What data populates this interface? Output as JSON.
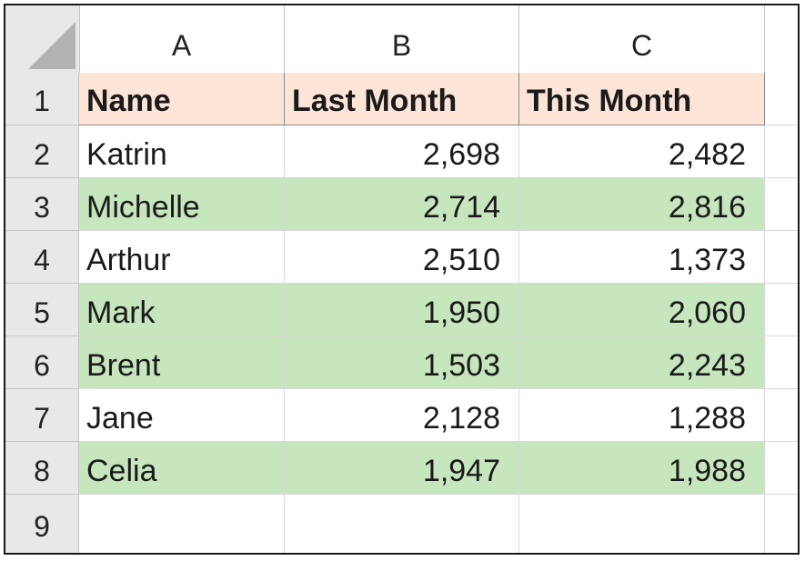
{
  "sheet": {
    "columns": [
      "A",
      "B",
      "C"
    ],
    "row_numbers": [
      "1",
      "2",
      "3",
      "4",
      "5",
      "6",
      "7",
      "8",
      "9"
    ],
    "header": {
      "name": "Name",
      "last_month": "Last Month",
      "this_month": "This Month"
    },
    "rows": [
      {
        "name": "Katrin",
        "last_month": "2,698",
        "this_month": "2,482",
        "banded": false
      },
      {
        "name": "Michelle",
        "last_month": "2,714",
        "this_month": "2,816",
        "banded": true
      },
      {
        "name": "Arthur",
        "last_month": "2,510",
        "this_month": "1,373",
        "banded": false
      },
      {
        "name": "Mark",
        "last_month": "1,950",
        "this_month": "2,060",
        "banded": true
      },
      {
        "name": "Brent",
        "last_month": "1,503",
        "this_month": "2,243",
        "banded": true
      },
      {
        "name": "Jane",
        "last_month": "2,128",
        "this_month": "1,288",
        "banded": false
      },
      {
        "name": "Celia",
        "last_month": "1,947",
        "this_month": "1,988",
        "banded": true
      }
    ],
    "colors": {
      "header_fill": "#fce4d6",
      "band_fill": "#c6e6bd"
    }
  }
}
